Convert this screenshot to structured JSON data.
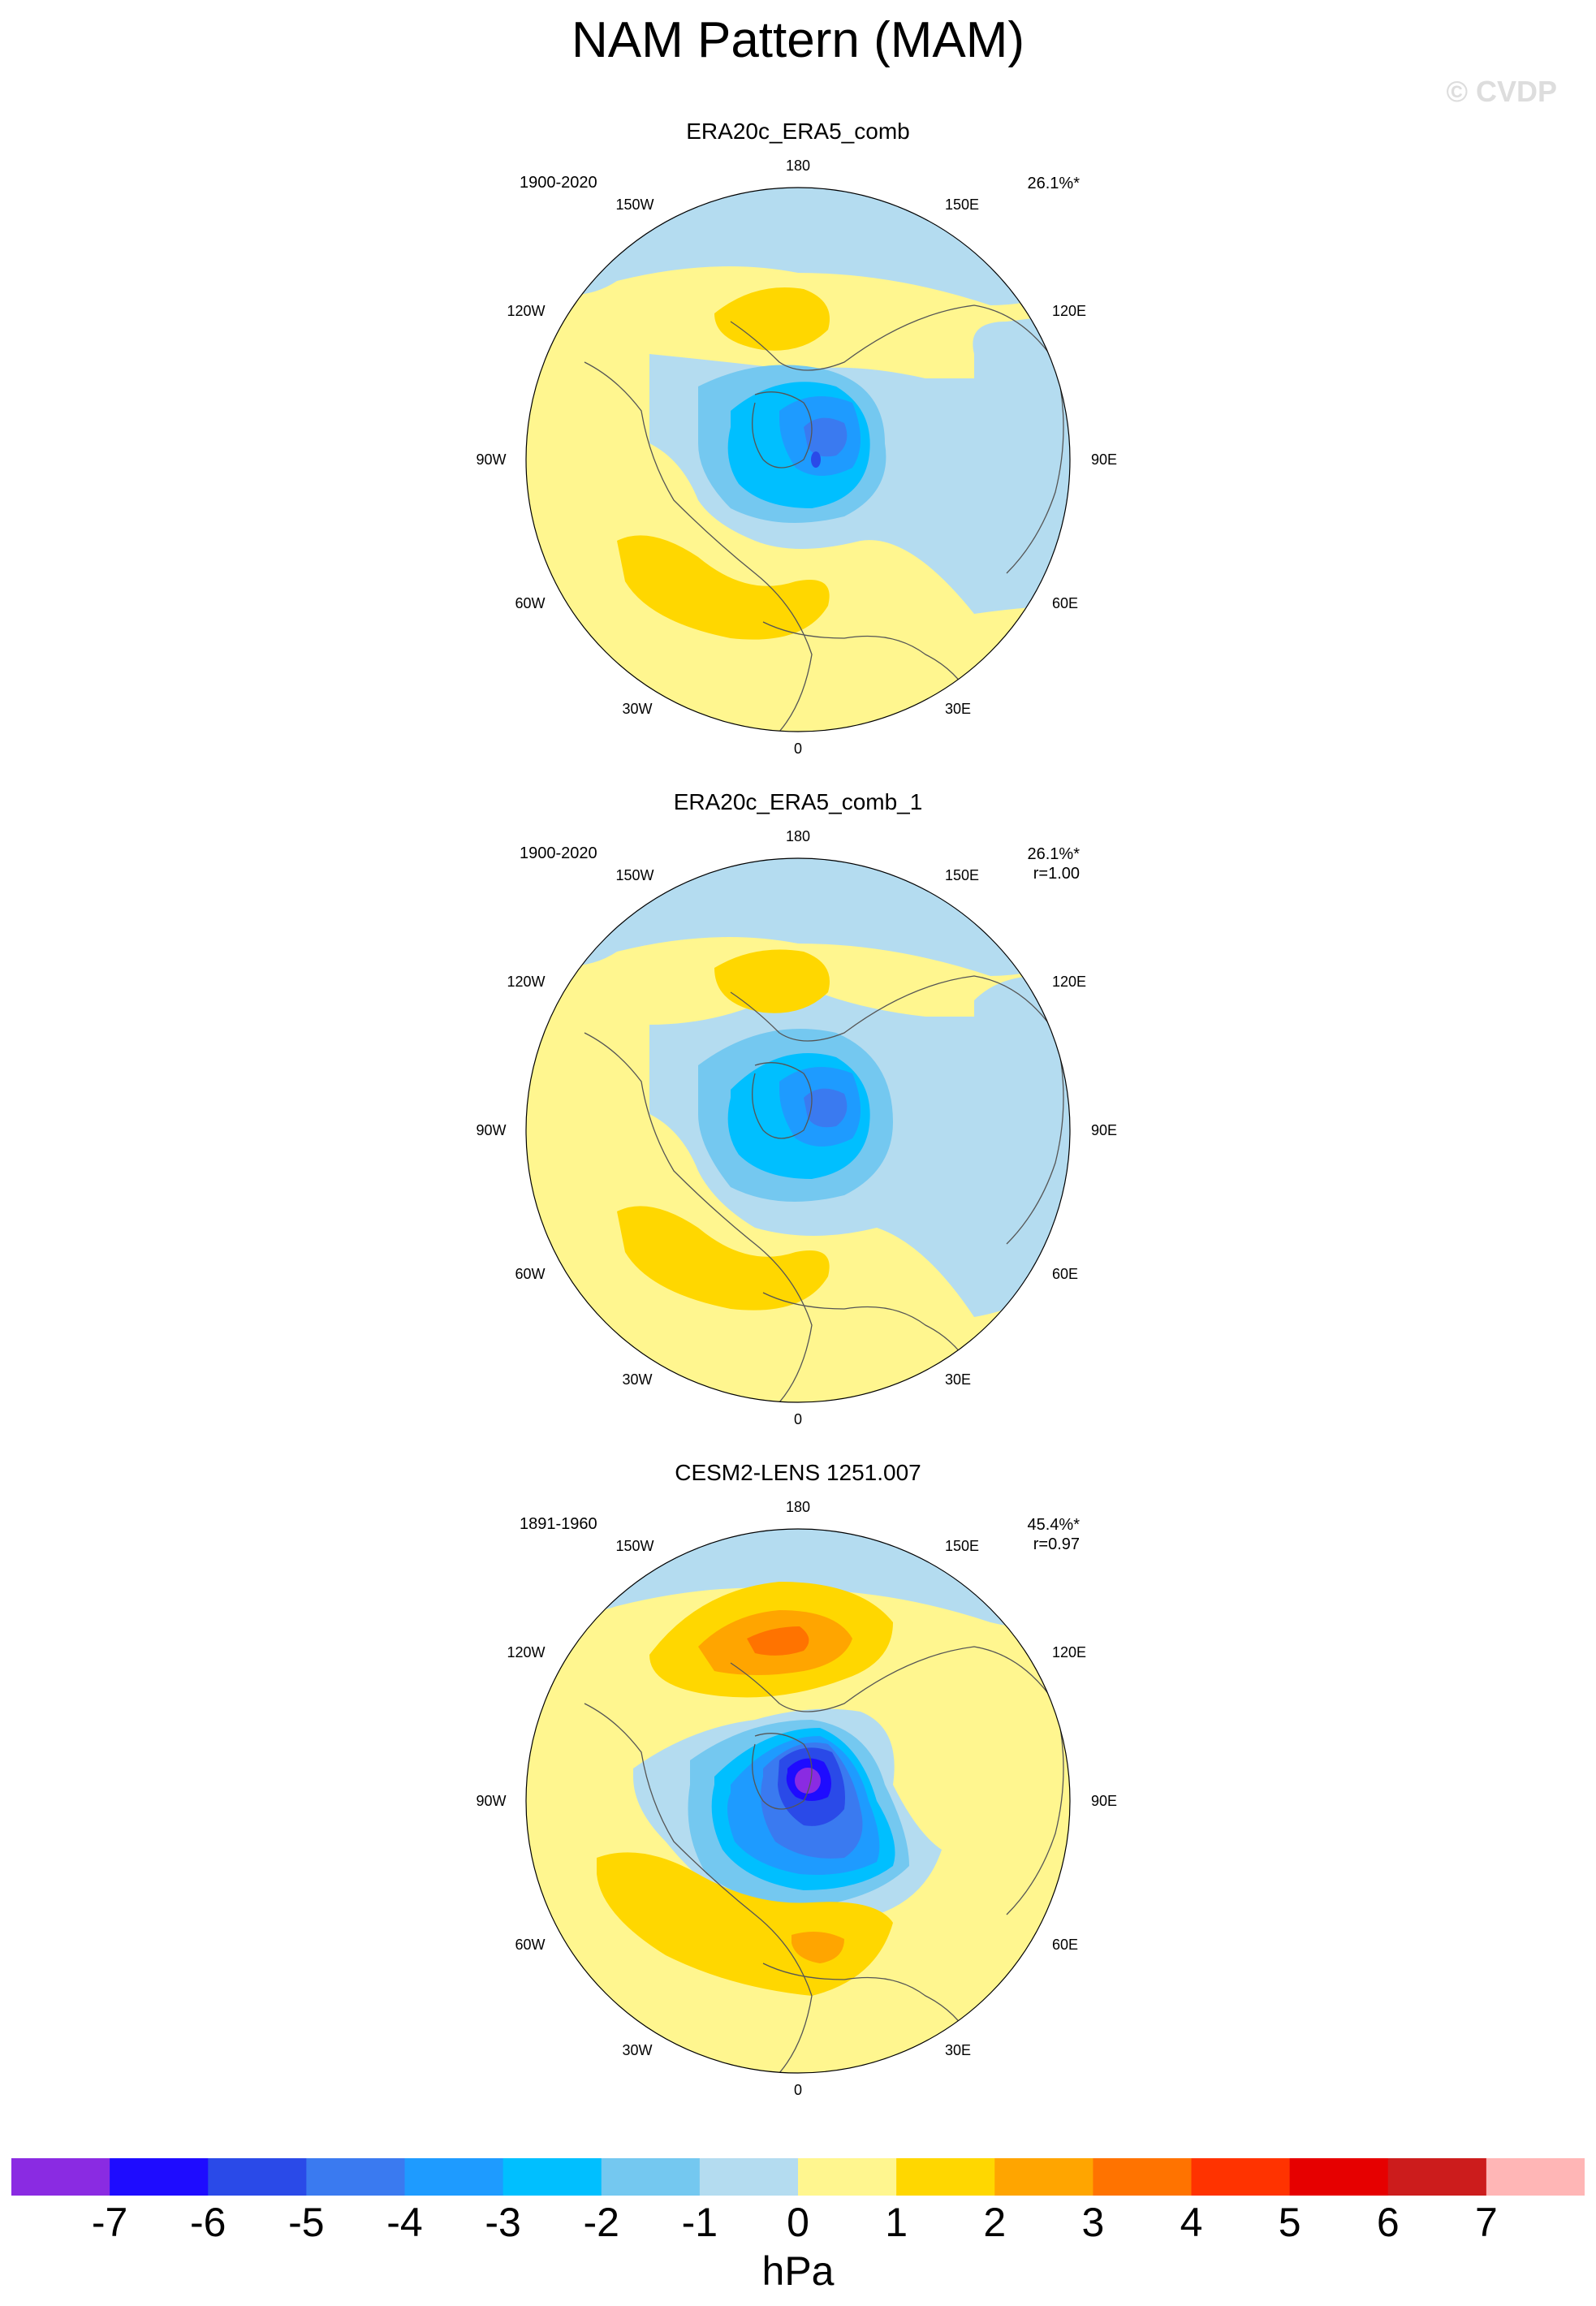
{
  "title": "NAM Pattern (MAM)",
  "watermark": "© CVDP",
  "panels": [
    {
      "title": "ERA20c_ERA5_comb",
      "period": "1900-2020",
      "stats": [
        "26.1%*"
      ],
      "lon_labels": [
        "180",
        "150E",
        "120E",
        "90E",
        "60E",
        "30E",
        "0",
        "30W",
        "60W",
        "90W",
        "120W",
        "150W"
      ]
    },
    {
      "title": "ERA20c_ERA5_comb_1",
      "period": "1900-2020",
      "stats": [
        "26.1%*",
        "r=1.00"
      ],
      "lon_labels": [
        "180",
        "150E",
        "120E",
        "90E",
        "60E",
        "30E",
        "0",
        "30W",
        "60W",
        "90W",
        "120W",
        "150W"
      ]
    },
    {
      "title": "CESM2-LENS 1251.007",
      "period": "1891-1960",
      "stats": [
        "45.4%*",
        "r=0.97"
      ],
      "lon_labels": [
        "180",
        "150E",
        "120E",
        "90E",
        "60E",
        "30E",
        "0",
        "30W",
        "60W",
        "90W",
        "120W",
        "150W"
      ]
    }
  ],
  "colorbar": {
    "colors": [
      "#8a2be2",
      "#1e0cff",
      "#2a4ae8",
      "#3a7af0",
      "#1e9bff",
      "#00bfff",
      "#74c8f0",
      "#b4dcf0",
      "#fff68f",
      "#ffd700",
      "#ffa500",
      "#ff7300",
      "#ff3300",
      "#e60000",
      "#cc1c1c",
      "#ffb6b6"
    ],
    "labels": [
      "-7",
      "-6",
      "-5",
      "-4",
      "-3",
      "-2",
      "-1",
      "0",
      "1",
      "2",
      "3",
      "4",
      "5",
      "6",
      "7"
    ],
    "units": "hPa"
  }
}
